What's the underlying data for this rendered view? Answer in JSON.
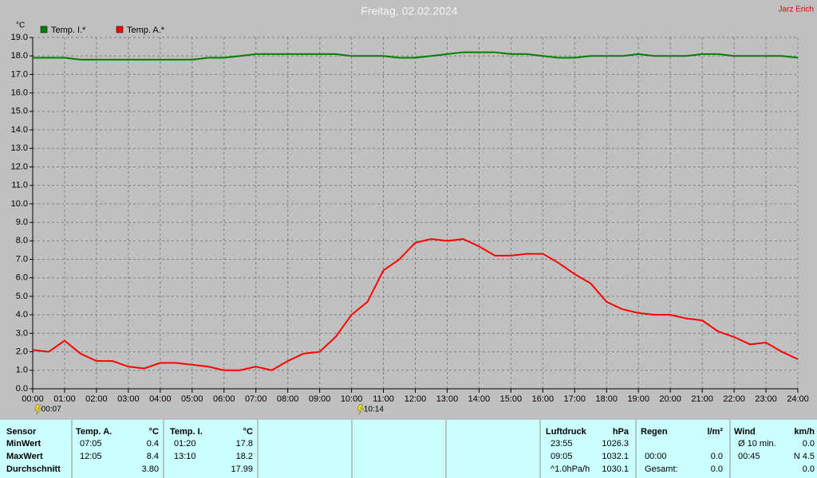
{
  "chart_data": {
    "type": "line",
    "title": "Freitag, 02.02.2024",
    "author": "Jarz Erich",
    "y_label": "°C",
    "grid": true,
    "legend": "top-left",
    "x": [
      0,
      0.5,
      1,
      1.5,
      2,
      2.5,
      3,
      3.5,
      4,
      4.5,
      5,
      5.5,
      6,
      6.5,
      7,
      7.5,
      8,
      8.5,
      9,
      9.5,
      10,
      10.5,
      11,
      11.5,
      12,
      12.5,
      13,
      13.5,
      14,
      14.5,
      15,
      15.5,
      16,
      16.5,
      17,
      17.5,
      18,
      18.5,
      19,
      19.5,
      20,
      20.5,
      21,
      21.5,
      22,
      22.5,
      23,
      23.5,
      24
    ],
    "series": [
      {
        "name": "Temp. I.*",
        "color": "#008000",
        "values": [
          17.9,
          17.9,
          17.9,
          17.8,
          17.8,
          17.8,
          17.8,
          17.8,
          17.8,
          17.8,
          17.8,
          17.9,
          17.9,
          18.0,
          18.1,
          18.1,
          18.1,
          18.1,
          18.1,
          18.1,
          18.0,
          18.0,
          18.0,
          17.9,
          17.9,
          18.0,
          18.1,
          18.2,
          18.2,
          18.2,
          18.1,
          18.1,
          18.0,
          17.9,
          17.9,
          18.0,
          18.0,
          18.0,
          18.1,
          18.0,
          18.0,
          18.0,
          18.1,
          18.1,
          18.0,
          18.0,
          18.0,
          18.0,
          17.9
        ]
      },
      {
        "name": "Temp. A.*",
        "color": "#ff0000",
        "values": [
          2.1,
          2.0,
          2.6,
          1.9,
          1.5,
          1.5,
          1.2,
          1.1,
          1.4,
          1.4,
          1.3,
          1.2,
          1.0,
          1.0,
          1.2,
          1.0,
          1.5,
          1.9,
          2.0,
          2.8,
          4.0,
          4.7,
          6.4,
          7.0,
          7.9,
          8.1,
          8.0,
          8.1,
          7.7,
          7.2,
          7.2,
          7.3,
          7.3,
          6.8,
          6.2,
          5.7,
          4.7,
          4.3,
          4.1,
          4.0,
          4.0,
          3.8,
          3.7,
          3.1,
          2.8,
          2.4,
          2.5,
          2.0,
          1.6
        ]
      }
    ],
    "xlim": [
      0,
      24
    ],
    "ylim": [
      0,
      19
    ],
    "xticks": [
      {
        "value": 0,
        "label": "00:00"
      },
      {
        "value": 1,
        "label": "01:00"
      },
      {
        "value": 2,
        "label": "02:00"
      },
      {
        "value": 3,
        "label": "03:00"
      },
      {
        "value": 4,
        "label": "04:00"
      },
      {
        "value": 5,
        "label": "05:00"
      },
      {
        "value": 6,
        "label": "06:00"
      },
      {
        "value": 7,
        "label": "07:00"
      },
      {
        "value": 8,
        "label": "08:00"
      },
      {
        "value": 9,
        "label": "09:00"
      },
      {
        "value": 10,
        "label": "10:00"
      },
      {
        "value": 11,
        "label": "11:00"
      },
      {
        "value": 12,
        "label": "12:00"
      },
      {
        "value": 13,
        "label": "13:00"
      },
      {
        "value": 14,
        "label": "14:00"
      },
      {
        "value": 15,
        "label": "15:00"
      },
      {
        "value": 16,
        "label": "16:00"
      },
      {
        "value": 17,
        "label": "17:00"
      },
      {
        "value": 18,
        "label": "18:00"
      },
      {
        "value": 19,
        "label": "19:00"
      },
      {
        "value": 20,
        "label": "20:00"
      },
      {
        "value": 21,
        "label": "21:00"
      },
      {
        "value": 22,
        "label": "22:00"
      },
      {
        "value": 23,
        "label": "23:00"
      },
      {
        "value": 24,
        "label": "24:00"
      }
    ],
    "yticks": [
      {
        "value": 0,
        "label": "0.0"
      },
      {
        "value": 1,
        "label": "1.0"
      },
      {
        "value": 2,
        "label": "2.0"
      },
      {
        "value": 3,
        "label": "3.0"
      },
      {
        "value": 4,
        "label": "4.0"
      },
      {
        "value": 5,
        "label": "5.0"
      },
      {
        "value": 6,
        "label": "6.0"
      },
      {
        "value": 7,
        "label": "7.0"
      },
      {
        "value": 8,
        "label": "8.0"
      },
      {
        "value": 9,
        "label": "9.0"
      },
      {
        "value": 10,
        "label": "10.0"
      },
      {
        "value": 11,
        "label": "11.0"
      },
      {
        "value": 12,
        "label": "12.0"
      },
      {
        "value": 13,
        "label": "13.0"
      },
      {
        "value": 14,
        "label": "14.0"
      },
      {
        "value": 15,
        "label": "15.0"
      },
      {
        "value": 16,
        "label": "16.0"
      },
      {
        "value": 17,
        "label": "17.0"
      },
      {
        "value": 18,
        "label": "18.0"
      },
      {
        "value": 19,
        "label": "19.0"
      }
    ],
    "annotations": [
      {
        "x": 0.1167,
        "label": "00:07"
      },
      {
        "x": 10.2333,
        "label": "10:14"
      }
    ]
  },
  "stats": {
    "row_labels": [
      "Sensor",
      "MinWert",
      "MaxWert",
      "Durchschnitt"
    ],
    "groups": [
      {
        "header": "Temp. A.",
        "unit": "°C",
        "rows": [
          {
            "time": "07:05",
            "value": "0.4"
          },
          {
            "time": "12:05",
            "value": "8.4"
          },
          {
            "value": "3.80"
          }
        ]
      },
      {
        "header": "Temp. I.",
        "unit": "°C",
        "rows": [
          {
            "time": "01:20",
            "value": "17.8"
          },
          {
            "time": "13:10",
            "value": "18.2"
          },
          {
            "value": "17.99"
          }
        ]
      },
      {
        "header": "Luftdruck",
        "unit": "hPa",
        "rows": [
          {
            "time": "23:55",
            "value": "1026.3"
          },
          {
            "time": "09:05",
            "value": "1032.1"
          },
          {
            "time": "^1.0hPa/h",
            "value": "1030.1"
          }
        ]
      },
      {
        "header": "Regen",
        "unit": "l/m²",
        "rows": [
          null,
          {
            "time": "00:00",
            "value": "0.0"
          },
          {
            "time": "Gesamt:",
            "value": "0.0"
          }
        ]
      },
      {
        "header": "Wind",
        "unit": "km/h",
        "rows": [
          {
            "time": "Ø 10 min.",
            "value": "0.0"
          },
          {
            "time": "00:45",
            "value": "N 4.5"
          },
          {
            "value": "0.0"
          }
        ]
      }
    ]
  }
}
